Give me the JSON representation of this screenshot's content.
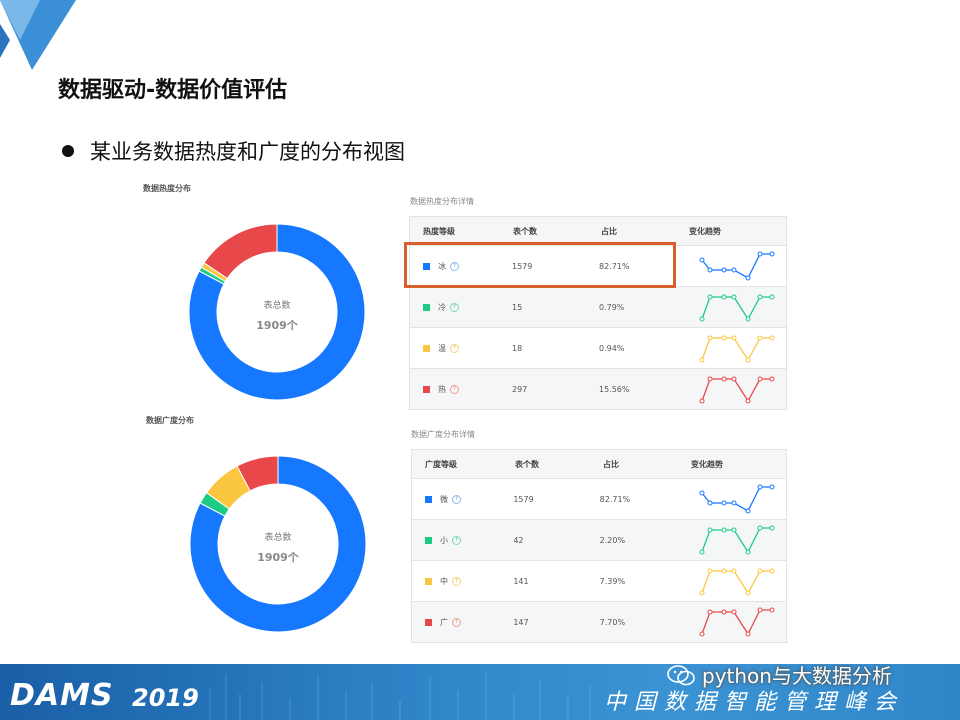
{
  "slide": {
    "title": "数据驱动-数据价值评估",
    "bullet": "某业务数据热度和广度的分布视图"
  },
  "heat": {
    "chart_title": "数据热度分布",
    "center_label": "表总数",
    "center_value": "1909个",
    "detail_title": "数据热度分布详情",
    "headers": [
      "热度等级",
      "表个数",
      "占比",
      "变化趋势"
    ],
    "rows": [
      {
        "level": "冰",
        "count": "1579",
        "ratio": "82.71%",
        "color": "#1677ff"
      },
      {
        "level": "冷",
        "count": "15",
        "ratio": "0.79%",
        "color": "#1ecb86"
      },
      {
        "level": "温",
        "count": "18",
        "ratio": "0.94%",
        "color": "#fbc640"
      },
      {
        "level": "热",
        "count": "297",
        "ratio": "15.56%",
        "color": "#e84849"
      }
    ]
  },
  "breadth": {
    "chart_title": "数据广度分布",
    "center_label": "表总数",
    "center_value": "1909个",
    "detail_title": "数据广度分布详情",
    "headers": [
      "广度等级",
      "表个数",
      "占比",
      "变化趋势"
    ],
    "rows": [
      {
        "level": "微",
        "count": "1579",
        "ratio": "82.71%",
        "color": "#1677ff"
      },
      {
        "level": "小",
        "count": "42",
        "ratio": "2.20%",
        "color": "#1ecb86"
      },
      {
        "level": "中",
        "count": "141",
        "ratio": "7.39%",
        "color": "#fbc640"
      },
      {
        "level": "广",
        "count": "147",
        "ratio": "7.70%",
        "color": "#e84849"
      }
    ]
  },
  "footer": {
    "brand": "DAMS",
    "year": "2019",
    "summit": "中国数据智能管理峰会",
    "watermark": "python与大数据分析"
  }
}
